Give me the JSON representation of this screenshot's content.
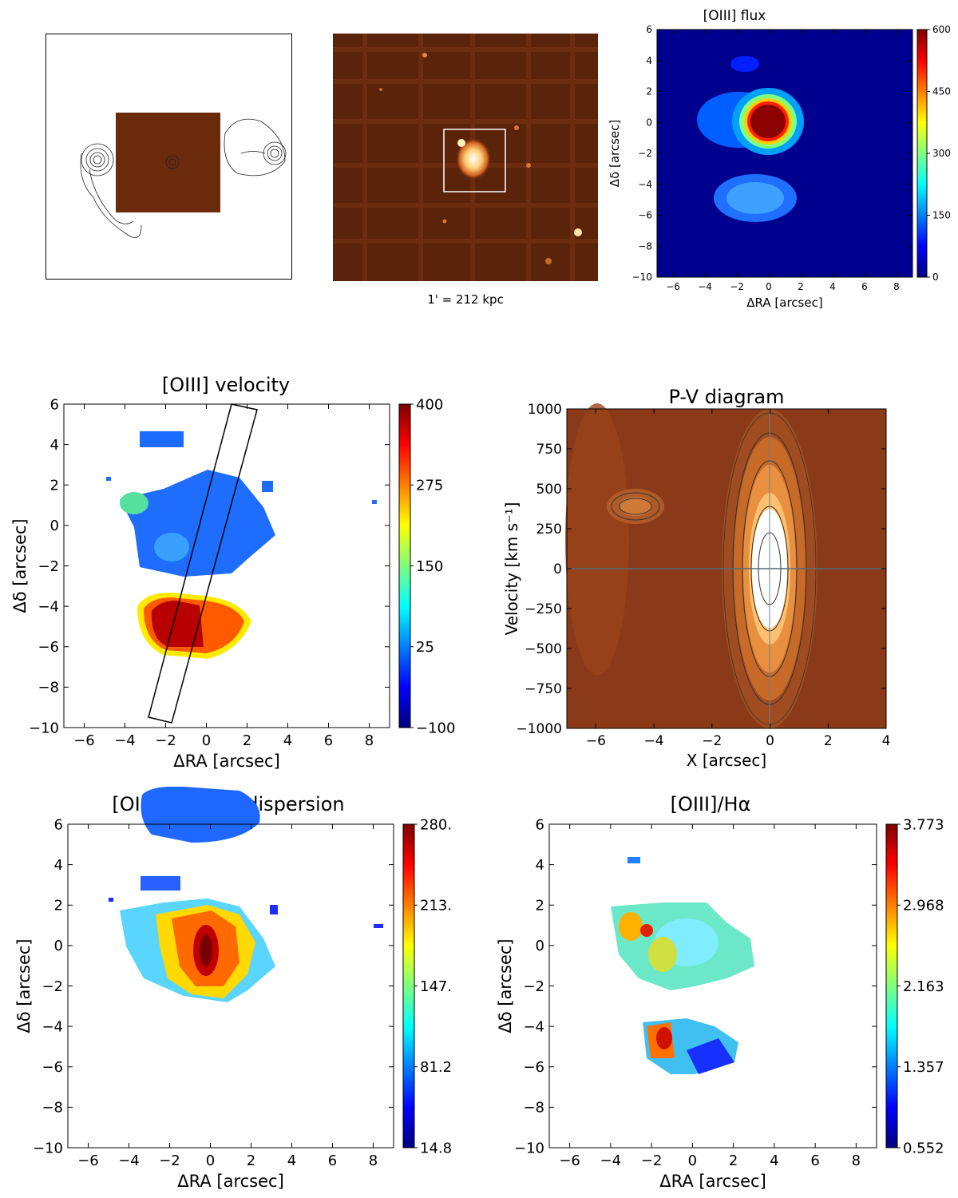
{
  "figure_caption": "1' = 212 kpc",
  "colors": {
    "jet": [
      "#00007f",
      "#0000ff",
      "#007fff",
      "#00ffff",
      "#7fff7f",
      "#ffff00",
      "#ff7f00",
      "#ff0000",
      "#7f0000"
    ],
    "hot": [
      "#4a1a08",
      "#7a3210",
      "#a04a1a",
      "#c86a28",
      "#e89040",
      "#ffc070",
      "#ffffff"
    ]
  },
  "chart_data": [
    {
      "id": "radio-overlay",
      "type": "image",
      "description_label": ""
    },
    {
      "id": "optical-image",
      "type": "image",
      "caption": "1' = 212 kpc"
    },
    {
      "id": "oiii-flux",
      "type": "heatmap",
      "title": "[OIII] flux",
      "xlabel": "ΔRA [arcsec]",
      "ylabel": "Δδ [arcsec]",
      "xlim": [
        -7,
        9
      ],
      "ylim": [
        -10,
        6
      ],
      "xticks": [
        "−6",
        "−4",
        "−2",
        "0",
        "2",
        "4",
        "6",
        "8"
      ],
      "yticks": [
        "−10",
        "−8",
        "−6",
        "−4",
        "−2",
        "0",
        "2",
        "4",
        "6"
      ],
      "colorbar": {
        "min": 0,
        "max": 600,
        "ticks": [
          "0",
          "150",
          "300",
          "450",
          "600"
        ]
      }
    },
    {
      "id": "oiii-velocity",
      "type": "heatmap",
      "title": "[OIII] velocity",
      "xlabel": "ΔRA [arcsec]",
      "ylabel": "Δδ [arcsec]",
      "xlim": [
        -7,
        9
      ],
      "ylim": [
        -10,
        6
      ],
      "xticks": [
        "−6",
        "−4",
        "−2",
        "0",
        "2",
        "4",
        "6",
        "8"
      ],
      "yticks": [
        "−10",
        "−8",
        "−6",
        "−4",
        "−2",
        "0",
        "2",
        "4",
        "6"
      ],
      "colorbar": {
        "min": -100,
        "max": 400,
        "ticks": [
          "−100",
          "25",
          "150",
          "275",
          "400"
        ]
      },
      "slit": [
        [
          -2.7,
          -9.5
        ],
        [
          -1.7,
          -9.8
        ],
        [
          2.3,
          5.8
        ],
        [
          1.3,
          6.1
        ]
      ]
    },
    {
      "id": "pv-diagram",
      "type": "heatmap",
      "title": "P-V diagram",
      "xlabel": "X [arcsec]",
      "ylabel": "Velocity [km s⁻¹]",
      "xlim": [
        -7,
        4
      ],
      "ylim": [
        -1000,
        1000
      ],
      "xticks": [
        "−6",
        "−4",
        "−2",
        "0",
        "2",
        "4"
      ],
      "yticks": [
        "−1000",
        "−750",
        "−500",
        "−250",
        "0",
        "250",
        "500",
        "750",
        "1000"
      ]
    },
    {
      "id": "oiii-dispersion",
      "type": "heatmap",
      "title": "[OIII] velocity dispersion",
      "xlabel": "ΔRA [arcsec]",
      "ylabel": "Δδ [arcsec]",
      "xlim": [
        -7,
        9
      ],
      "ylim": [
        -10,
        6
      ],
      "xticks": [
        "−6",
        "−4",
        "−2",
        "0",
        "2",
        "4",
        "6",
        "8"
      ],
      "yticks": [
        "−10",
        "−8",
        "−6",
        "−4",
        "−2",
        "0",
        "2",
        "4",
        "6"
      ],
      "colorbar": {
        "min": 14.8,
        "max": 280,
        "ticks": [
          "14.8",
          "81.2",
          "147.",
          "213.",
          "280."
        ]
      }
    },
    {
      "id": "oiii-halpha",
      "type": "heatmap",
      "title": "[OIII]/Hα",
      "xlabel": "ΔRA [arcsec]",
      "ylabel": "Δδ [arcsec]",
      "xlim": [
        -7,
        9
      ],
      "ylim": [
        -10,
        6
      ],
      "xticks": [
        "−6",
        "−4",
        "−2",
        "0",
        "2",
        "4",
        "6",
        "8"
      ],
      "yticks": [
        "−10",
        "−8",
        "−6",
        "−4",
        "−2",
        "0",
        "2",
        "4",
        "6"
      ],
      "colorbar": {
        "min": 0.552,
        "max": 3.773,
        "ticks": [
          "0.552",
          "1.357",
          "2.163",
          "2.968",
          "3.773"
        ]
      }
    }
  ]
}
